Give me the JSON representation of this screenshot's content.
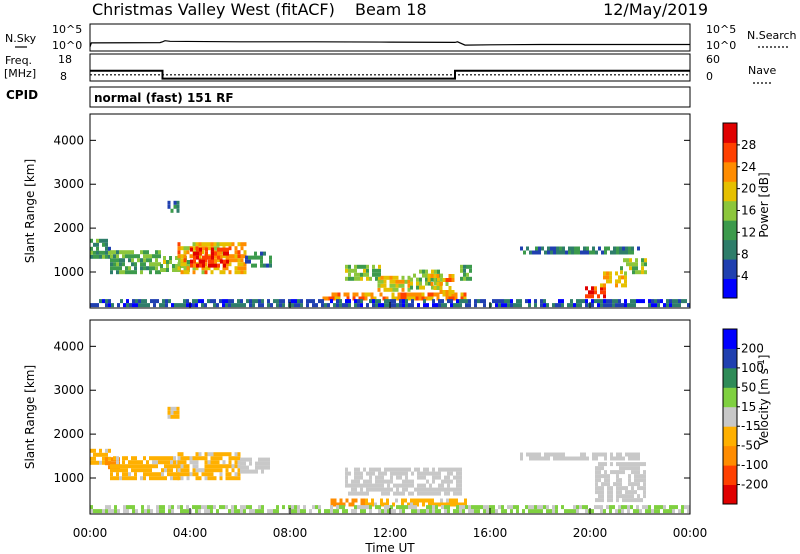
{
  "header": {
    "title": "Christmas Valley West (fitACF)",
    "beam": "Beam 18",
    "date": "12/May/2019"
  },
  "side_labels": {
    "nsky": "N.Sky",
    "freq": "Freq.",
    "mhz": "[MHz]",
    "cpid": "CPID",
    "nsearch": "N.Search",
    "nave": "Nave"
  },
  "cpid_text": "normal (fast) 151 RF",
  "x_axis": {
    "label": "Time UT",
    "ticks": [
      "00:00",
      "04:00",
      "08:00",
      "12:00",
      "16:00",
      "20:00",
      "00:00"
    ]
  },
  "colors": {
    "power": [
      "#0000ff",
      "#2040b0",
      "#2e7d6a",
      "#3c9a4c",
      "#8cc63c",
      "#e6c000",
      "#ff8c00",
      "#ff4000",
      "#e00000"
    ],
    "velocity": [
      "#e00000",
      "#ff4000",
      "#ff8c00",
      "#ffb000",
      "#c8c8c8",
      "#7fd040",
      "#2e8b57",
      "#2040b0",
      "#0000ff"
    ]
  },
  "chart_data": [
    {
      "type": "line",
      "panel": "noise",
      "xlim_hours": [
        0,
        24
      ],
      "left_axis": {
        "label": "N.Sky",
        "ticks": [
          "10^0",
          "10^5"
        ]
      },
      "right_axis": {
        "label": "N.Search",
        "ticks": [
          "10^0",
          "10^5"
        ]
      },
      "series": [
        {
          "x": [
            0,
            0.05,
            2.8,
            2.9,
            3.0,
            3.2,
            6,
            9,
            12,
            14.6,
            14.7,
            15.0,
            16,
            18,
            20,
            22,
            24
          ],
          "y_frac": [
            0.15,
            0.3,
            0.31,
            0.34,
            0.38,
            0.36,
            0.34,
            0.34,
            0.33,
            0.32,
            0.34,
            0.22,
            0.23,
            0.24,
            0.24,
            0.24,
            0.24
          ]
        }
      ]
    },
    {
      "type": "line",
      "panel": "freq_nave",
      "xlim_hours": [
        0,
        24
      ],
      "left_axis": {
        "label": "Freq. [MHz]",
        "ticks": [
          "8",
          "18"
        ]
      },
      "right_axis": {
        "label": "Nave",
        "ticks": [
          "0",
          "60"
        ]
      },
      "series": [
        {
          "x": [
            0,
            2.9,
            2.9,
            14.6,
            14.6,
            24
          ],
          "y": [
            11.8,
            11.8,
            8.9,
            8.9,
            11.8,
            11.8
          ]
        },
        {
          "x": [
            0,
            24
          ],
          "y": [
            10.3,
            10.3
          ]
        }
      ]
    },
    {
      "type": "heatmap",
      "panel": "power",
      "xlabel": "Time UT",
      "ylabel": "Slant Range [km]",
      "ylim": [
        180,
        4600
      ],
      "y_ticks": [
        1000,
        2000,
        3000,
        4000
      ],
      "colorbar": {
        "label": "Power [dB]",
        "ticks": [
          "4",
          "8",
          "12",
          "16",
          "20",
          "24",
          "28"
        ],
        "range": [
          0,
          30
        ]
      },
      "regions": [
        {
          "t": [
            0,
            0.8
          ],
          "r": [
            1300,
            1700
          ],
          "v": 10
        },
        {
          "t": [
            0.8,
            2.8
          ],
          "r": [
            950,
            1450
          ],
          "v": 12
        },
        {
          "t": [
            2.8,
            4.0
          ],
          "r": [
            1000,
            1350
          ],
          "v": 14
        },
        {
          "t": [
            3.5,
            6.2
          ],
          "r": [
            950,
            1600
          ],
          "v": 20
        },
        {
          "t": [
            4.0,
            5.5
          ],
          "r": [
            1100,
            1500
          ],
          "v": 26
        },
        {
          "t": [
            6.2,
            7.2
          ],
          "r": [
            1100,
            1400
          ],
          "v": 10
        },
        {
          "t": [
            3.1,
            3.5
          ],
          "r": [
            2350,
            2550
          ],
          "v": 8
        },
        {
          "t": [
            9.3,
            15.0
          ],
          "r": [
            350,
            480
          ],
          "v": 22
        },
        {
          "t": [
            10.2,
            11.6
          ],
          "r": [
            800,
            1150
          ],
          "v": 14
        },
        {
          "t": [
            11.5,
            12.8
          ],
          "r": [
            550,
            900
          ],
          "v": 18
        },
        {
          "t": [
            12.8,
            14.0
          ],
          "r": [
            600,
            1000
          ],
          "v": 14
        },
        {
          "t": [
            13.5,
            14.5
          ],
          "r": [
            500,
            900
          ],
          "v": 20
        },
        {
          "t": [
            14.8,
            15.2
          ],
          "r": [
            800,
            1100
          ],
          "v": 12
        },
        {
          "t": [
            17.2,
            22.0
          ],
          "r": [
            1400,
            1550
          ],
          "v": 8
        },
        {
          "t": [
            19.8,
            20.6
          ],
          "r": [
            400,
            650
          ],
          "v": 26
        },
        {
          "t": [
            20.4,
            21.4
          ],
          "r": [
            650,
            1000
          ],
          "v": 20
        },
        {
          "t": [
            21.2,
            22.2
          ],
          "r": [
            950,
            1300
          ],
          "v": 14
        },
        {
          "t": [
            0,
            24
          ],
          "r": [
            200,
            350
          ],
          "v": 6
        }
      ]
    },
    {
      "type": "heatmap",
      "panel": "velocity",
      "xlabel": "Time UT",
      "ylabel": "Slant Range [km]",
      "ylim": [
        180,
        4600
      ],
      "y_ticks": [
        1000,
        2000,
        3000,
        4000
      ],
      "colorbar": {
        "label": "Velocity [m s^-1]",
        "ticks": [
          "-200",
          "-100",
          "-50",
          "-15",
          "15",
          "50",
          "100",
          "200"
        ],
        "range": [
          -250,
          250
        ]
      },
      "regions": [
        {
          "t": [
            0,
            0.8
          ],
          "r": [
            1300,
            1650
          ],
          "v": -40
        },
        {
          "t": [
            0.6,
            1.2
          ],
          "r": [
            1200,
            1450
          ],
          "v": -120
        },
        {
          "t": [
            0.8,
            3.5
          ],
          "r": [
            950,
            1450
          ],
          "v": -40
        },
        {
          "t": [
            3.5,
            6.0
          ],
          "r": [
            950,
            1550
          ],
          "v": -35
        },
        {
          "t": [
            6.0,
            7.2
          ],
          "r": [
            1100,
            1400
          ],
          "v": 0
        },
        {
          "t": [
            3.1,
            3.5
          ],
          "r": [
            2350,
            2550
          ],
          "v": -30
        },
        {
          "t": [
            9.5,
            11.0
          ],
          "r": [
            350,
            480
          ],
          "v": -120
        },
        {
          "t": [
            11.0,
            15.0
          ],
          "r": [
            350,
            480
          ],
          "v": -40
        },
        {
          "t": [
            10.2,
            14.8
          ],
          "r": [
            600,
            1150
          ],
          "v": 0
        },
        {
          "t": [
            17.2,
            22.0
          ],
          "r": [
            1400,
            1550
          ],
          "v": 0
        },
        {
          "t": [
            20.2,
            22.2
          ],
          "r": [
            450,
            1300
          ],
          "v": 0
        },
        {
          "t": [
            0,
            24
          ],
          "r": [
            200,
            350
          ],
          "v": 30
        }
      ]
    }
  ]
}
